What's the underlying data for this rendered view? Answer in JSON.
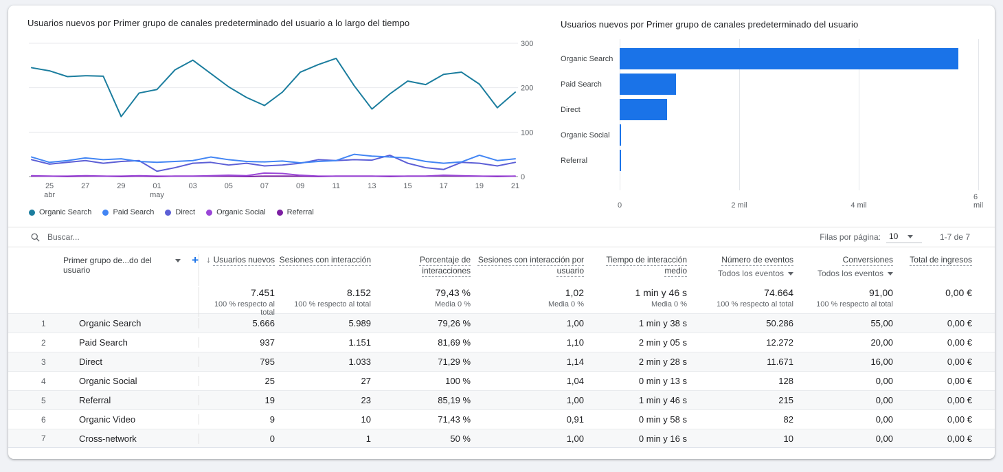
{
  "line_chart": {
    "title": "Usuarios nuevos por Primer grupo de canales predeterminado del usuario a lo largo del tiempo"
  },
  "bar_chart": {
    "title": "Usuarios nuevos por Primer grupo de canales predeterminado del usuario"
  },
  "chart_data": [
    {
      "type": "line",
      "title": "Usuarios nuevos por Primer grupo de canales predeterminado del usuario a lo largo del tiempo",
      "x": [
        "24 abr",
        "25 abr",
        "26 abr",
        "27 abr",
        "28 abr",
        "29 abr",
        "30 abr",
        "01 may",
        "02 may",
        "03 may",
        "04 may",
        "05 may",
        "06 may",
        "07 may",
        "08 may",
        "09 may",
        "10 may",
        "11 may",
        "12 may",
        "13 may",
        "14 may",
        "15 may",
        "16 may",
        "17 may",
        "18 may",
        "19 may",
        "20 may",
        "21 may"
      ],
      "x_ticks": [
        {
          "index": 1,
          "label": "25",
          "sub": "abr"
        },
        {
          "index": 3,
          "label": "27"
        },
        {
          "index": 5,
          "label": "29"
        },
        {
          "index": 7,
          "label": "01",
          "sub": "may"
        },
        {
          "index": 9,
          "label": "03"
        },
        {
          "index": 11,
          "label": "05"
        },
        {
          "index": 13,
          "label": "07"
        },
        {
          "index": 15,
          "label": "09"
        },
        {
          "index": 17,
          "label": "11"
        },
        {
          "index": 19,
          "label": "13"
        },
        {
          "index": 21,
          "label": "15"
        },
        {
          "index": 23,
          "label": "17"
        },
        {
          "index": 25,
          "label": "19"
        },
        {
          "index": 27,
          "label": "21"
        }
      ],
      "ylim": [
        0,
        300
      ],
      "y_ticks": [
        0,
        100,
        200,
        300
      ],
      "grid": true,
      "legend_position": "bottom",
      "series": [
        {
          "name": "Organic Search",
          "color": "#1b7d9e",
          "values": [
            245,
            238,
            225,
            227,
            226,
            135,
            188,
            196,
            240,
            262,
            232,
            202,
            178,
            160,
            190,
            235,
            252,
            266,
            205,
            152,
            186,
            215,
            207,
            230,
            235,
            208,
            155,
            190
          ]
        },
        {
          "name": "Paid Search",
          "color": "#4285f4",
          "values": [
            44,
            32,
            36,
            42,
            38,
            40,
            34,
            32,
            34,
            36,
            44,
            38,
            34,
            33,
            35,
            31,
            34,
            36,
            50,
            46,
            44,
            42,
            34,
            30,
            33,
            48,
            36,
            40
          ]
        },
        {
          "name": "Direct",
          "color": "#5c5fd6",
          "values": [
            38,
            28,
            32,
            36,
            30,
            34,
            36,
            12,
            20,
            30,
            32,
            26,
            30,
            24,
            26,
            30,
            38,
            36,
            38,
            37,
            48,
            30,
            20,
            16,
            32,
            30,
            24,
            32
          ]
        },
        {
          "name": "Organic Social",
          "color": "#9a46d7",
          "values": [
            2,
            1,
            1,
            2,
            1,
            1,
            2,
            1,
            1,
            1,
            2,
            3,
            2,
            8,
            7,
            3,
            1,
            1,
            1,
            1,
            1,
            1,
            1,
            3,
            2,
            1,
            1,
            1
          ]
        },
        {
          "name": "Referral",
          "color": "#7c1fa2",
          "values": [
            1,
            1,
            0,
            1,
            1,
            0,
            1,
            0,
            1,
            1,
            1,
            1,
            0,
            1,
            1,
            1,
            0,
            1,
            1,
            1,
            0,
            1,
            1,
            2,
            1,
            1,
            0,
            1
          ]
        }
      ]
    },
    {
      "type": "bar",
      "orientation": "horizontal",
      "title": "Usuarios nuevos por Primer grupo de canales predeterminado del usuario",
      "categories": [
        "Organic Search",
        "Paid Search",
        "Direct",
        "Organic Social",
        "Referral"
      ],
      "values": [
        5666,
        937,
        795,
        25,
        19
      ],
      "xlim": [
        0,
        6000
      ],
      "x_ticks": [
        {
          "label": "0",
          "value": 0
        },
        {
          "label": "2 mil",
          "value": 2000
        },
        {
          "label": "4 mil",
          "value": 4000
        },
        {
          "label": "6 mil",
          "value": 6000
        }
      ],
      "bar_color": "#1a73e8",
      "grid": true
    }
  ],
  "toolbar": {
    "search_placeholder": "Buscar...",
    "rows_per_page_label": "Filas por página:",
    "rows_per_page_value": "10",
    "range_label": "1-7 de 7"
  },
  "table": {
    "dimension_header": "Primer grupo de...do del usuario",
    "columns": [
      {
        "label": "Usuarios nuevos",
        "sorted": true
      },
      {
        "label": "Sesiones con interacción"
      },
      {
        "label": "Porcentaje de interacciones"
      },
      {
        "label": "Sesiones con interacción por usuario"
      },
      {
        "label": "Tiempo de interacción medio"
      },
      {
        "label": "Número de eventos",
        "filter": "Todos los eventos"
      },
      {
        "label": "Conversiones",
        "filter": "Todos los eventos"
      },
      {
        "label": "Total de ingresos"
      }
    ],
    "totals": {
      "values": [
        "7.451",
        "8.152",
        "79,43 %",
        "1,02",
        "1 min y 46 s",
        "74.664",
        "91,00",
        "0,00 €"
      ],
      "captions": [
        "100 % respecto al total",
        "100 % respecto al total",
        "Media 0 %",
        "Media 0 %",
        "Media 0 %",
        "100 % respecto al total",
        "100 % respecto al total",
        ""
      ]
    },
    "rows": [
      {
        "num": "1",
        "channel": "Organic Search",
        "values": [
          "5.666",
          "5.989",
          "79,26 %",
          "1,00",
          "1 min y 38 s",
          "50.286",
          "55,00",
          "0,00 €"
        ]
      },
      {
        "num": "2",
        "channel": "Paid Search",
        "values": [
          "937",
          "1.151",
          "81,69 %",
          "1,10",
          "2 min y 05 s",
          "12.272",
          "20,00",
          "0,00 €"
        ]
      },
      {
        "num": "3",
        "channel": "Direct",
        "values": [
          "795",
          "1.033",
          "71,29 %",
          "1,14",
          "2 min y 28 s",
          "11.671",
          "16,00",
          "0,00 €"
        ]
      },
      {
        "num": "4",
        "channel": "Organic Social",
        "values": [
          "25",
          "27",
          "100 %",
          "1,04",
          "0 min y 13 s",
          "128",
          "0,00",
          "0,00 €"
        ]
      },
      {
        "num": "5",
        "channel": "Referral",
        "values": [
          "19",
          "23",
          "85,19 %",
          "1,00",
          "1 min y 46 s",
          "215",
          "0,00",
          "0,00 €"
        ]
      },
      {
        "num": "6",
        "channel": "Organic Video",
        "values": [
          "9",
          "10",
          "71,43 %",
          "0,91",
          "0 min y 58 s",
          "82",
          "0,00",
          "0,00 €"
        ]
      },
      {
        "num": "7",
        "channel": "Cross-network",
        "values": [
          "0",
          "1",
          "50 %",
          "1,00",
          "0 min y 16 s",
          "10",
          "0,00",
          "0,00 €"
        ]
      }
    ]
  }
}
